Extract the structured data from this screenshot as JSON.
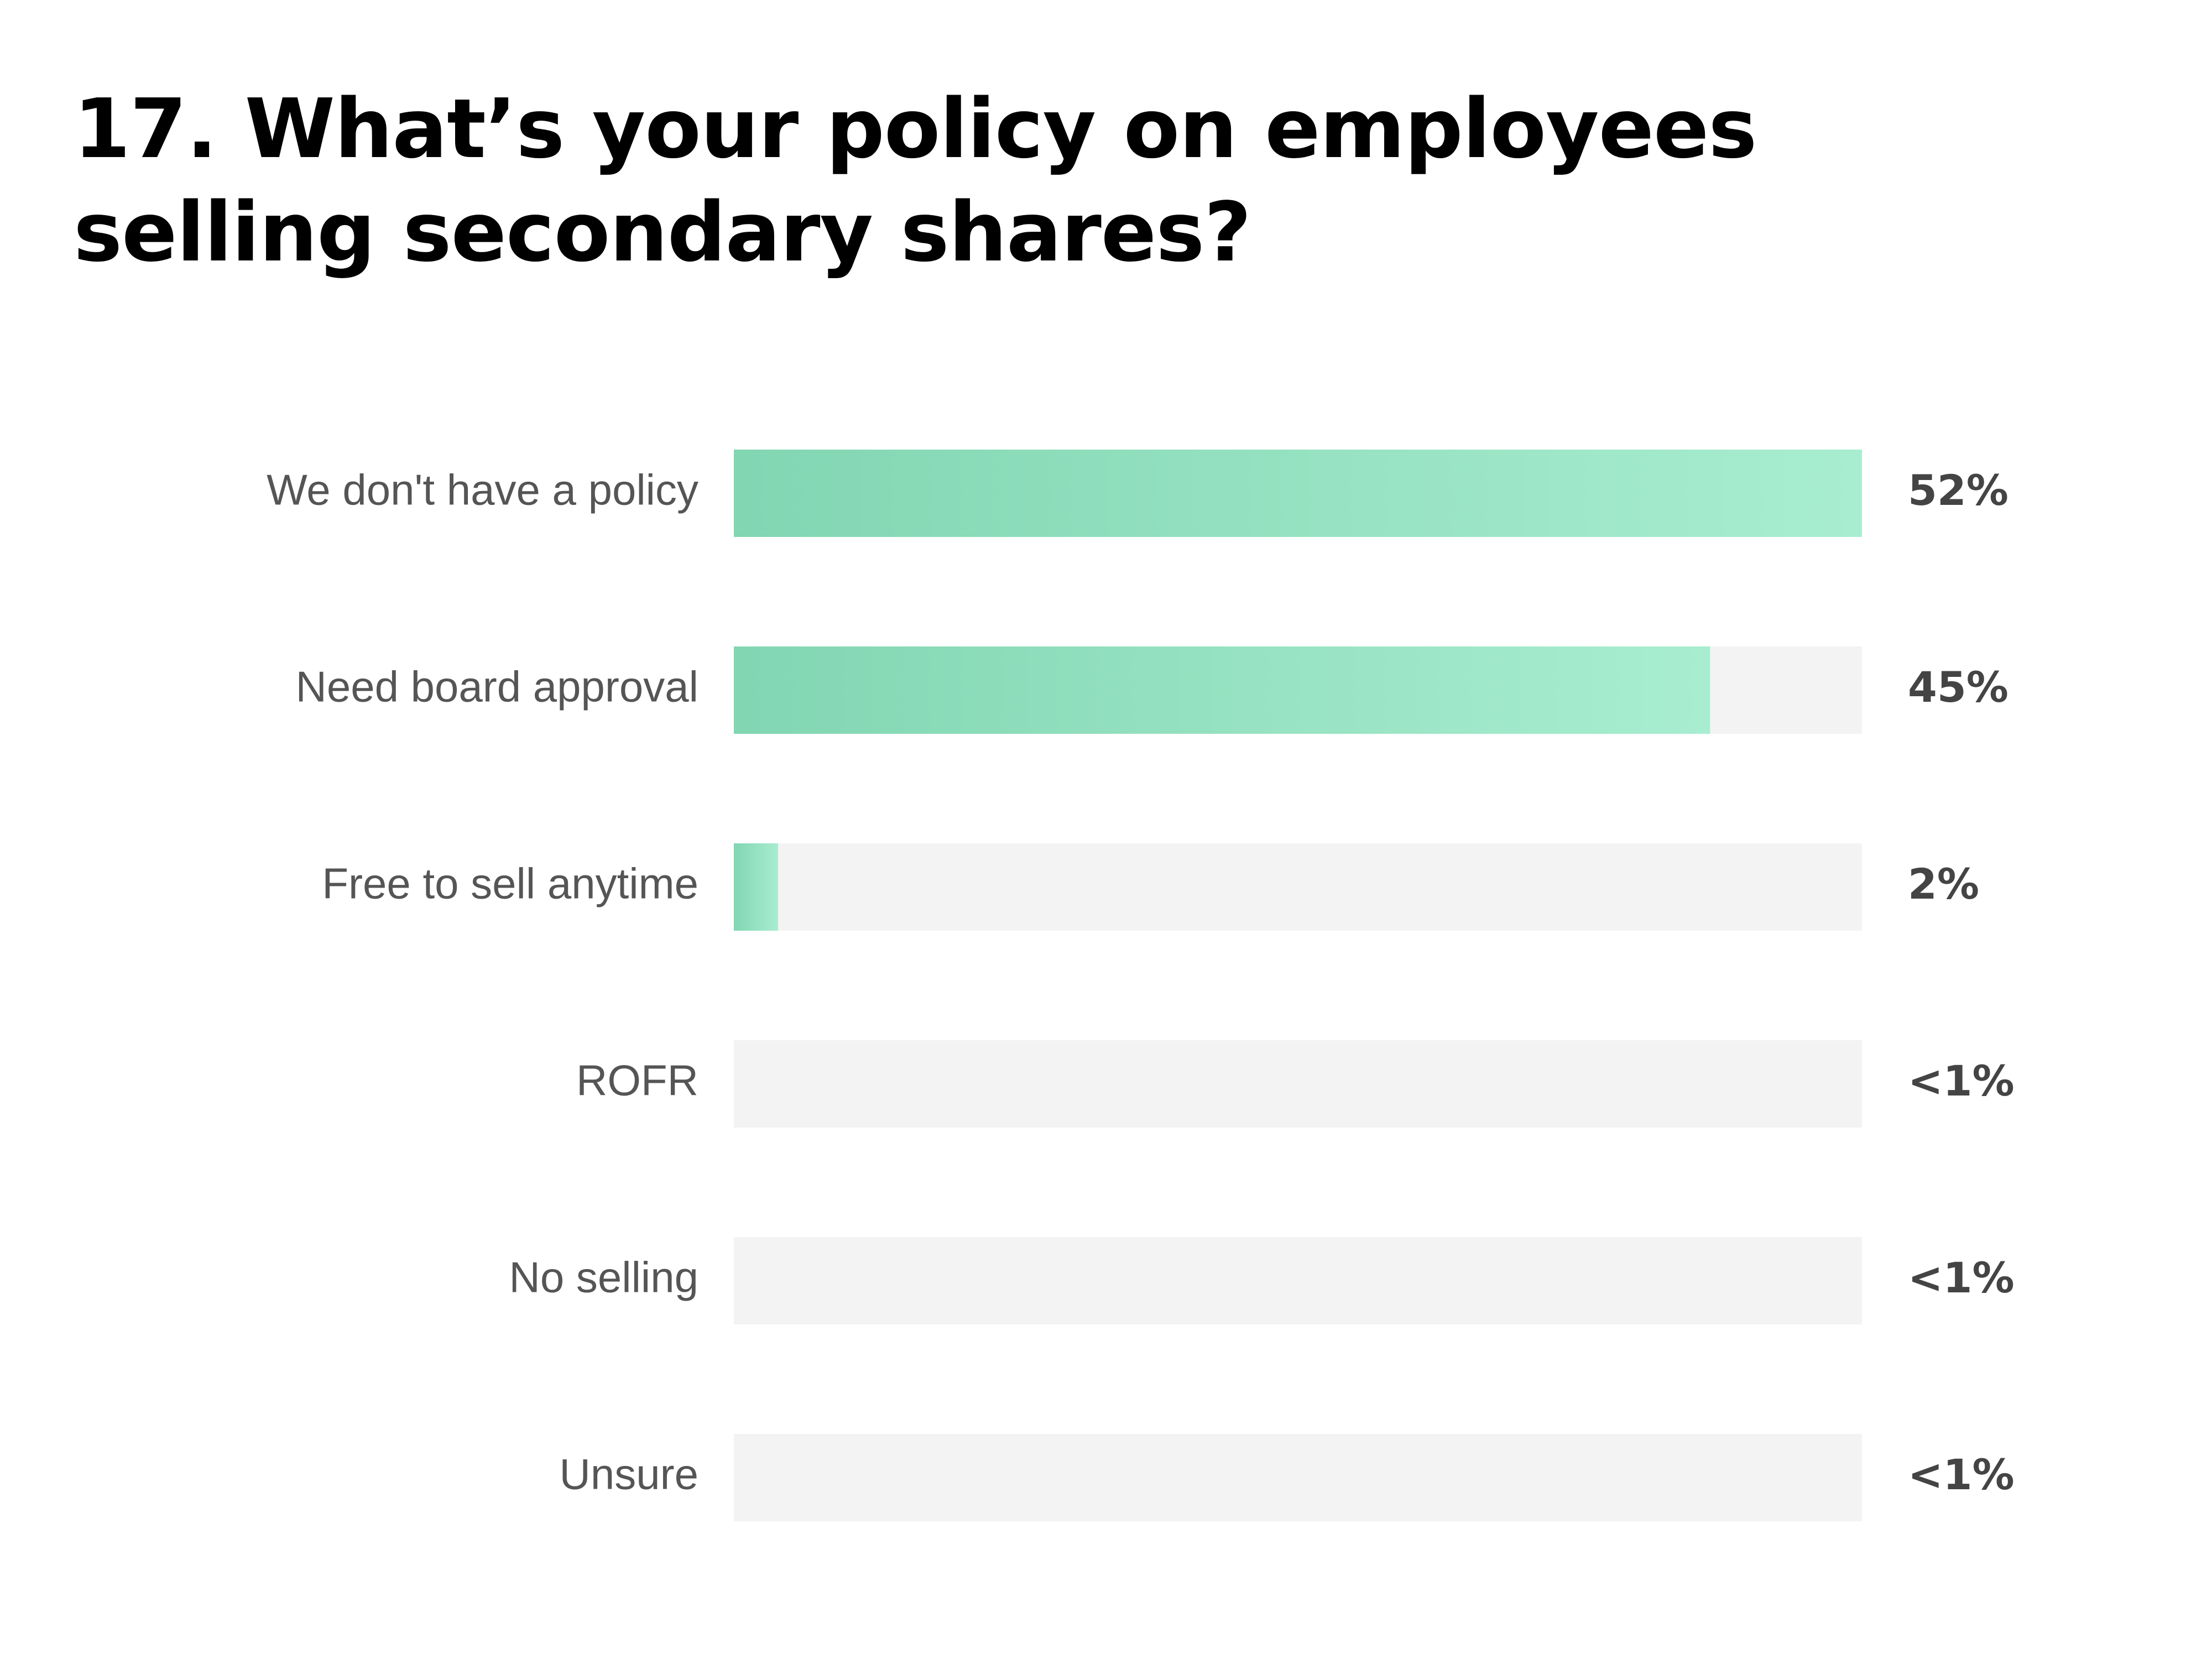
{
  "title": "17. What’s your policy on employees selling secondary shares?",
  "colors": {
    "bar_start": "#82d6b2",
    "bar_end": "#a8edd0",
    "track": "#f3f3f4",
    "label": "#555555",
    "value_label": "#444444"
  },
  "chart_data": {
    "type": "bar",
    "orientation": "horizontal",
    "title": "17. What’s your policy on employees selling secondary shares?",
    "xlim": [
      0,
      52
    ],
    "grid": false,
    "categories": [
      "We don't have a policy",
      "Need board approval",
      "Free to sell anytime",
      "ROFR",
      "No selling",
      "Unsure"
    ],
    "values": [
      52,
      45,
      2,
      0,
      0,
      0
    ],
    "value_labels": [
      "52%",
      "45%",
      "2%",
      "<1%",
      "<1%",
      "<1%"
    ]
  }
}
